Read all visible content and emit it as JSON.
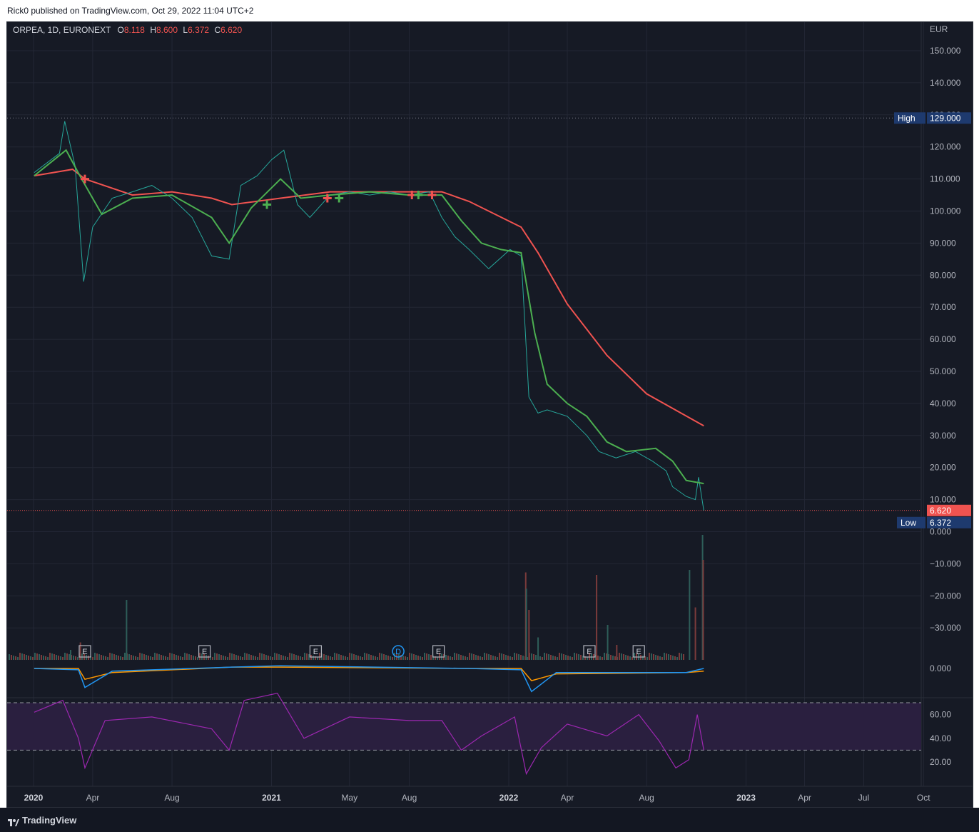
{
  "header": {
    "published_text": "Rick0 published on TradingView.com, Oct 29, 2022 11:04 UTC+2"
  },
  "legend": {
    "symbol": "ORPEA, 1D, EURONEXT",
    "o_label": "O",
    "o_value": "8.118",
    "h_label": "H",
    "h_value": "8.600",
    "l_label": "L",
    "l_value": "6.372",
    "c_label": "C",
    "c_value": "6.620"
  },
  "footer": {
    "brand": "TradingView"
  },
  "colors": {
    "background": "#161a25",
    "grid": "#232735",
    "text": "#b2b5be",
    "up": "#26a69a",
    "down": "#ef5350",
    "ema_fast": "#4caf50",
    "ema_slow": "#f05350",
    "rsi": "#9c27b0",
    "macd": "#2196f3",
    "signal": "#ff9800"
  },
  "chart_data": {
    "type": "line",
    "currency_label": "EUR",
    "x_ticks": [
      "2020",
      "Apr",
      "Aug",
      "2021",
      "May",
      "Aug",
      "2022",
      "Apr",
      "Aug",
      "2023",
      "Apr",
      "Jul",
      "Oct"
    ],
    "price_axis": [
      "150.000",
      "140.000",
      "130.000",
      "120.000",
      "110.000",
      "100.000",
      "90.000",
      "80.000",
      "70.000",
      "60.000",
      "50.000",
      "40.000",
      "30.000",
      "20.000",
      "10.000",
      "0.000",
      "−10.000",
      "−20.000",
      "−30.000"
    ],
    "ylim": [
      -40,
      155
    ],
    "high_label": "High",
    "high_value": "129.000",
    "low_label": "Low",
    "low_value": "6.372",
    "last_value": "6.620",
    "series": [
      {
        "name": "price",
        "x": [
          "2020-01-02",
          "2020-02-10",
          "2020-02-18",
          "2020-03-05",
          "2020-03-18",
          "2020-04-01",
          "2020-05-01",
          "2020-06-01",
          "2020-07-01",
          "2020-08-01",
          "2020-09-01",
          "2020-10-01",
          "2020-10-28",
          "2020-11-15",
          "2020-12-10",
          "2021-01-01",
          "2021-01-20",
          "2021-02-10",
          "2021-03-01",
          "2021-04-01",
          "2021-05-01",
          "2021-06-01",
          "2021-07-01",
          "2021-08-01",
          "2021-09-01",
          "2021-09-20",
          "2021-10-10",
          "2021-11-01",
          "2021-12-01",
          "2022-01-03",
          "2022-01-20",
          "2022-01-26",
          "2022-02-01",
          "2022-02-15",
          "2022-03-01",
          "2022-04-01",
          "2022-05-01",
          "2022-05-20",
          "2022-06-15",
          "2022-07-15",
          "2022-08-10",
          "2022-08-31",
          "2022-09-10",
          "2022-10-01",
          "2022-10-15",
          "2022-10-20",
          "2022-10-28"
        ],
        "values": [
          112,
          118,
          128,
          114,
          78,
          95,
          104,
          106,
          108,
          104,
          98,
          86,
          85,
          108,
          111,
          116,
          119,
          102,
          98,
          105,
          106,
          105,
          106,
          105,
          106,
          98,
          92,
          88,
          82,
          88,
          86,
          64,
          42,
          37,
          38,
          36,
          30,
          25,
          23,
          25,
          22,
          19,
          14,
          11,
          10,
          17,
          6.62
        ]
      },
      {
        "name": "ema_fast",
        "x": [
          "2020-01-02",
          "2020-02-20",
          "2020-03-15",
          "2020-04-15",
          "2020-06-01",
          "2020-08-01",
          "2020-10-01",
          "2020-10-28",
          "2020-12-01",
          "2021-01-15",
          "2021-02-15",
          "2021-04-01",
          "2021-06-01",
          "2021-08-01",
          "2021-09-20",
          "2021-10-20",
          "2021-11-20",
          "2021-12-20",
          "2022-01-20",
          "2022-02-10",
          "2022-03-01",
          "2022-04-01",
          "2022-05-01",
          "2022-06-01",
          "2022-07-01",
          "2022-08-15",
          "2022-09-10",
          "2022-10-01",
          "2022-10-28"
        ],
        "values": [
          111,
          119,
          110,
          99,
          104,
          105,
          98,
          90,
          101,
          110,
          104,
          105,
          106,
          105,
          105,
          97,
          90,
          88,
          87,
          62,
          46,
          40,
          36,
          28,
          25,
          26,
          22,
          16,
          15
        ]
      },
      {
        "name": "ema_slow",
        "x": [
          "2020-01-02",
          "2020-03-01",
          "2020-03-20",
          "2020-06-01",
          "2020-08-01",
          "2020-10-01",
          "2020-11-01",
          "2021-01-15",
          "2021-04-01",
          "2021-09-20",
          "2021-11-01",
          "2022-01-20",
          "2022-02-15",
          "2022-04-01",
          "2022-06-01",
          "2022-08-01",
          "2022-10-28"
        ],
        "values": [
          111,
          113,
          110,
          105,
          106,
          104,
          102,
          104,
          106,
          106,
          103,
          95,
          87,
          71,
          55,
          43,
          33
        ]
      },
      {
        "name": "rsi",
        "ylim": [
          10,
          80
        ],
        "bands": [
          30,
          70
        ],
        "x": [
          "2020-01-02",
          "2020-02-15",
          "2020-03-10",
          "2020-03-20",
          "2020-04-20",
          "2020-07-01",
          "2020-10-01",
          "2020-10-28",
          "2020-11-20",
          "2021-01-10",
          "2021-02-20",
          "2021-05-01",
          "2021-08-01",
          "2021-09-20",
          "2021-10-20",
          "2021-11-20",
          "2022-01-10",
          "2022-01-28",
          "2022-02-20",
          "2022-04-01",
          "2022-06-01",
          "2022-07-20",
          "2022-08-20",
          "2022-09-15",
          "2022-10-05",
          "2022-10-18",
          "2022-10-28"
        ],
        "values": [
          62,
          72,
          40,
          15,
          55,
          58,
          48,
          30,
          72,
          78,
          40,
          58,
          55,
          55,
          30,
          42,
          58,
          10,
          32,
          52,
          42,
          60,
          38,
          15,
          22,
          60,
          30
        ]
      }
    ],
    "volume": {
      "spikes": [
        {
          "x": "2020-02-26",
          "v": 8
        },
        {
          "x": "2020-03-12",
          "v": 14
        },
        {
          "x": "2020-05-22",
          "v": 48
        },
        {
          "x": "2022-01-26",
          "v": 70
        },
        {
          "x": "2022-01-27",
          "v": 57
        },
        {
          "x": "2022-01-31",
          "v": 40
        },
        {
          "x": "2022-02-14",
          "v": 18
        },
        {
          "x": "2022-05-15",
          "v": 68
        },
        {
          "x": "2022-06-01",
          "v": 28
        },
        {
          "x": "2022-06-15",
          "v": 12
        },
        {
          "x": "2022-10-05",
          "v": 72
        },
        {
          "x": "2022-10-14",
          "v": 42
        },
        {
          "x": "2022-10-25",
          "v": 100
        },
        {
          "x": "2022-10-26",
          "v": 80
        }
      ]
    },
    "macd": {
      "x": [
        "2020-01-02",
        "2020-03-10",
        "2020-03-20",
        "2020-05-01",
        "2020-11-01",
        "2021-01-15",
        "2021-11-01",
        "2022-01-20",
        "2022-02-05",
        "2022-03-15",
        "2022-10-01",
        "2022-10-28"
      ],
      "macd": [
        0,
        -1,
        -14,
        -2,
        1,
        2,
        0,
        -1,
        -17,
        -3,
        -3,
        0
      ],
      "signal": [
        0,
        0,
        -8,
        -3,
        1,
        1,
        0,
        0,
        -9,
        -4,
        -3,
        -2
      ]
    },
    "event_markers": [
      {
        "label": "E",
        "x": "2020-03-20"
      },
      {
        "label": "E",
        "x": "2020-09-20"
      },
      {
        "label": "E",
        "x": "2021-03-10"
      },
      {
        "label": "D",
        "x": "2021-07-15"
      },
      {
        "label": "E",
        "x": "2021-09-15"
      },
      {
        "label": "E",
        "x": "2022-05-05"
      },
      {
        "label": "E",
        "x": "2022-07-20"
      }
    ],
    "cross_markers": [
      {
        "x": "2020-03-20",
        "y": 110,
        "type": "down"
      },
      {
        "x": "2020-12-25",
        "y": 102,
        "type": "up"
      },
      {
        "x": "2021-03-28",
        "y": 104,
        "type": "down"
      },
      {
        "x": "2021-04-15",
        "y": 104,
        "type": "up"
      },
      {
        "x": "2021-08-05",
        "y": 105,
        "type": "down"
      },
      {
        "x": "2021-08-15",
        "y": 105,
        "type": "up"
      },
      {
        "x": "2021-09-05",
        "y": 105,
        "type": "down"
      }
    ],
    "rsi_axis": [
      "60.00",
      "40.00",
      "20.00"
    ],
    "macd_axis": "0.000"
  }
}
